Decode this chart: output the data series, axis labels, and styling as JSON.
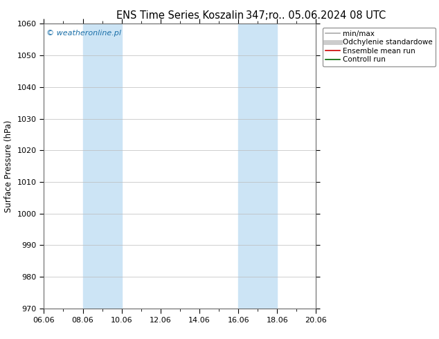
{
  "title_left": "ENS Time Series Koszalin",
  "title_right": "347;ro.. 05.06.2024 08 UTC",
  "ylabel": "Surface Pressure (hPa)",
  "ylim": [
    970,
    1060
  ],
  "yticks": [
    970,
    980,
    990,
    1000,
    1010,
    1020,
    1030,
    1040,
    1050,
    1060
  ],
  "xtick_labels": [
    "06.06",
    "08.06",
    "10.06",
    "12.06",
    "14.06",
    "16.06",
    "18.06",
    "20.06"
  ],
  "xtick_positions": [
    0,
    2,
    4,
    6,
    8,
    10,
    12,
    14
  ],
  "xlim": [
    0,
    14
  ],
  "shaded_regions": [
    {
      "x_start": 2,
      "x_end": 4,
      "color": "#cce4f5"
    },
    {
      "x_start": 10,
      "x_end": 12,
      "color": "#cce4f5"
    }
  ],
  "legend_items": [
    {
      "label": "min/max",
      "color": "#aaaaaa",
      "lw": 1.2
    },
    {
      "label": "Odchylenie standardowe",
      "color": "#cccccc",
      "lw": 5
    },
    {
      "label": "Ensemble mean run",
      "color": "#cc0000",
      "lw": 1.2
    },
    {
      "label": "Controll run",
      "color": "#006600",
      "lw": 1.2
    }
  ],
  "watermark": "© weatheronline.pl",
  "watermark_color": "#1a6fa8",
  "background_color": "#ffffff",
  "plot_bg_color": "#ffffff",
  "grid_color": "#bbbbbb",
  "title_fontsize": 10.5,
  "ylabel_fontsize": 8.5,
  "tick_fontsize": 8,
  "legend_fontsize": 7.5
}
